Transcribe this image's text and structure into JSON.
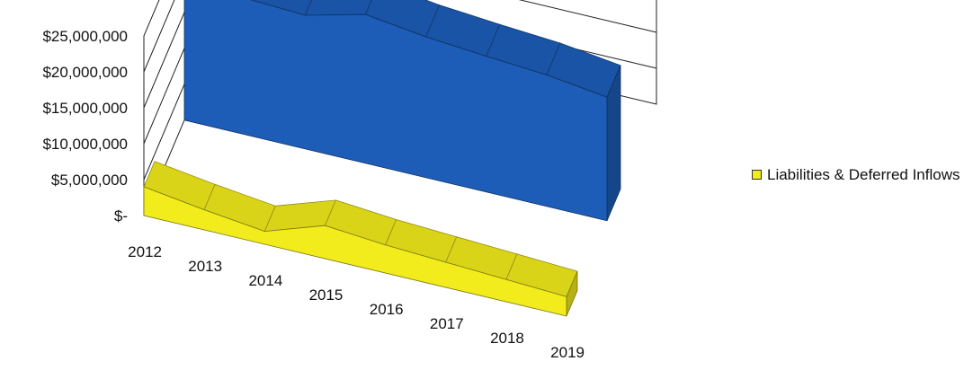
{
  "chart_data": {
    "type": "area",
    "three_d": true,
    "categories": [
      "2012",
      "2013",
      "2014",
      "2015",
      "2016",
      "2017",
      "2018",
      "2019"
    ],
    "y_tick_labels": [
      "$-",
      "$5,000,000",
      "$10,000,000",
      "$15,000,000",
      "$20,000,000",
      "$25,000,000"
    ],
    "ylim": [
      0,
      25000000
    ],
    "grid": true,
    "legend_position": "right",
    "series": [
      {
        "name": "Liabilities & Deferred Inflows",
        "color": "#f2ec1c",
        "values": [
          4000000,
          2800000,
          1800000,
          4600000,
          3900000,
          3500000,
          3100000,
          2700000
        ]
      },
      {
        "color": "#1d5db8",
        "values": [
          17500000,
          19000000,
          18600000,
          20700000,
          19600000,
          18900000,
          18300000,
          17200000
        ]
      }
    ]
  }
}
